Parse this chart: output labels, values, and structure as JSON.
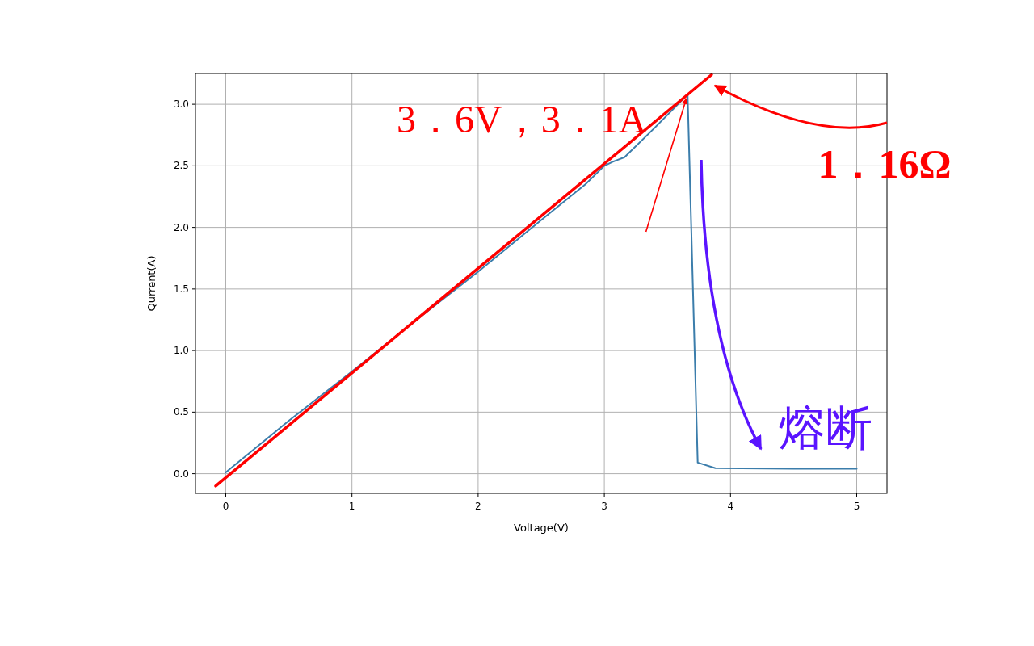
{
  "chart_data": {
    "type": "line",
    "xlabel": "Voltage(V)",
    "ylabel": "Qurrent(A)",
    "xlim": [
      -0.24,
      5.24
    ],
    "ylim": [
      -0.16,
      3.25
    ],
    "xticks": [
      0,
      1,
      2,
      3,
      4,
      5
    ],
    "yticks": [
      {
        "value": 0,
        "label": "0.0"
      },
      {
        "value": 0.5,
        "label": "0.5"
      },
      {
        "value": 1,
        "label": "1.0"
      },
      {
        "value": 1.5,
        "label": "1.5"
      },
      {
        "value": 2,
        "label": "2.0"
      },
      {
        "value": 2.5,
        "label": "2.5"
      },
      {
        "value": 3,
        "label": "3.0"
      }
    ],
    "grid": true,
    "series": [
      {
        "color": "#3b7dab",
        "x": [
          0,
          0.5,
          1,
          1.5,
          2,
          2.5,
          2.85,
          3.0,
          3.06,
          3.16,
          3.4,
          3.66,
          3.74,
          3.88,
          4.5,
          5
        ],
        "values": [
          0.01,
          0.43,
          0.83,
          1.24,
          1.64,
          2.06,
          2.35,
          2.5,
          2.53,
          2.57,
          2.81,
          3.08,
          0.09,
          0.045,
          0.04,
          0.04
        ]
      },
      {
        "color": "#ff0000",
        "x": [
          -0.08,
          3.85
        ],
        "values": [
          -0.1,
          3.24
        ]
      }
    ],
    "annotations": [
      {
        "text": "3．6V，3．1A",
        "x": 3.65,
        "y": 3.06
      },
      "1．16Ω",
      "熔断"
    ]
  }
}
